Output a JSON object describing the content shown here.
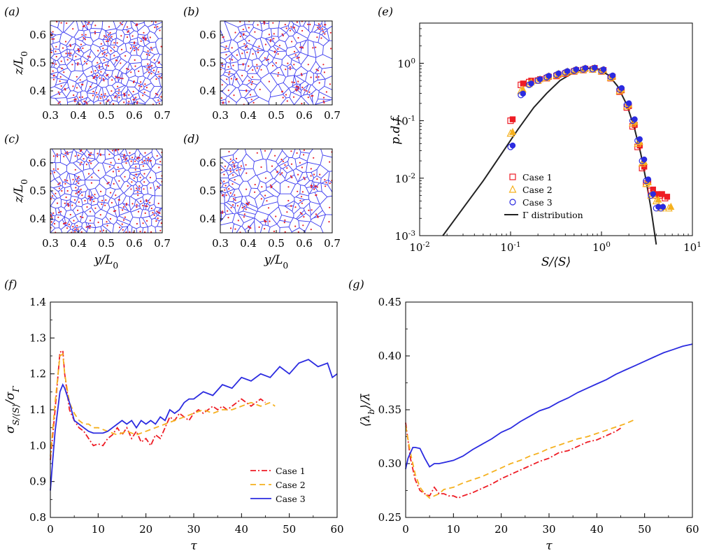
{
  "panels": {
    "a": {
      "label": "(a)"
    },
    "b": {
      "label": "(b)"
    },
    "c": {
      "label": "(c)"
    },
    "d": {
      "label": "(d)"
    },
    "e": {
      "label": "(e)"
    },
    "f": {
      "label": "(f)"
    },
    "g": {
      "label": "(g)"
    }
  },
  "colors": {
    "case1": "#ee1c25",
    "case2": "#f5b11f",
    "case3": "#2b2be0",
    "gamma": "#222222",
    "voronoi": "#3c3cf0",
    "particle": "#e8202a"
  },
  "chart_data": [
    {
      "type": "scatter",
      "panel": "a",
      "xlabel": "",
      "ylabel": "z/L0",
      "xlim": [
        0.3,
        0.7
      ],
      "ylim": [
        0.35,
        0.65
      ],
      "xticks": [
        "0.3",
        "0.4",
        "0.5",
        "0.6",
        "0.7"
      ],
      "yticks": [
        "0.4",
        "0.5",
        "0.6"
      ],
      "overlay": "voronoi tessellation of particle positions",
      "cell_density": 240,
      "seed": 11
    },
    {
      "type": "scatter",
      "panel": "b",
      "xlabel": "",
      "ylabel": "",
      "xlim": [
        0.3,
        0.7
      ],
      "ylim": [
        0.35,
        0.65
      ],
      "xticks": [
        "0.3",
        "0.4",
        "0.5",
        "0.6",
        "0.7"
      ],
      "yticks": [
        "0.4",
        "0.5",
        "0.6"
      ],
      "overlay": "voronoi tessellation of particle positions",
      "cell_density": 170,
      "seed": 23
    },
    {
      "type": "scatter",
      "panel": "c",
      "xlabel": "y/L0",
      "ylabel": "z/L0",
      "xlim": [
        0.3,
        0.7
      ],
      "ylim": [
        0.35,
        0.65
      ],
      "xticks": [
        "0.3",
        "0.4",
        "0.5",
        "0.6",
        "0.7"
      ],
      "yticks": [
        "0.4",
        "0.5",
        "0.6"
      ],
      "overlay": "voronoi tessellation of particle positions",
      "cell_density": 230,
      "seed": 37
    },
    {
      "type": "scatter",
      "panel": "d",
      "xlabel": "y/L0",
      "ylabel": "",
      "xlim": [
        0.3,
        0.7
      ],
      "ylim": [
        0.35,
        0.65
      ],
      "xticks": [
        "0.3",
        "0.4",
        "0.5",
        "0.6",
        "0.7"
      ],
      "yticks": [
        "0.4",
        "0.5",
        "0.6"
      ],
      "overlay": "voronoi tessellation of particle positions",
      "cell_density": 150,
      "seed": 53
    },
    {
      "type": "scatter",
      "panel": "e",
      "xlabel": "S/⟨S⟩",
      "ylabel": "p.d.f.",
      "xscale": "log",
      "yscale": "log",
      "xlim": [
        0.01,
        10
      ],
      "ylim": [
        0.001,
        5
      ],
      "legend": "lower-center",
      "series": [
        {
          "name": "Case 1",
          "marker": "open-square",
          "x": [
            0.1,
            0.13,
            0.16,
            0.2,
            0.25,
            0.32,
            0.4,
            0.5,
            0.63,
            0.8,
            1.0,
            1.26,
            1.58,
            1.9,
            2.2,
            2.5,
            2.8,
            3.1,
            3.5,
            3.9,
            4.4,
            5.0
          ],
          "y": [
            0.1,
            0.42,
            0.47,
            0.5,
            0.55,
            0.6,
            0.66,
            0.72,
            0.76,
            0.78,
            0.72,
            0.55,
            0.32,
            0.17,
            0.08,
            0.035,
            0.015,
            0.008,
            0.006,
            0.005,
            0.005,
            0.0045
          ]
        },
        {
          "name": "Case 2",
          "marker": "open-triangle",
          "x": [
            0.1,
            0.13,
            0.16,
            0.2,
            0.25,
            0.32,
            0.4,
            0.5,
            0.63,
            0.8,
            1.0,
            1.26,
            1.58,
            1.9,
            2.2,
            2.5,
            2.8,
            3.1,
            3.5,
            4.0,
            4.5,
            5.5
          ],
          "y": [
            0.06,
            0.33,
            0.44,
            0.5,
            0.56,
            0.62,
            0.68,
            0.73,
            0.77,
            0.78,
            0.73,
            0.56,
            0.33,
            0.18,
            0.09,
            0.04,
            0.018,
            0.008,
            0.005,
            0.004,
            0.003,
            0.003
          ]
        },
        {
          "name": "Case 3",
          "marker": "open-circle",
          "x": [
            0.1,
            0.13,
            0.16,
            0.2,
            0.25,
            0.32,
            0.4,
            0.5,
            0.63,
            0.8,
            1.0,
            1.26,
            1.58,
            1.9,
            2.2,
            2.5,
            2.8,
            3.1,
            3.5,
            4.0,
            4.5
          ],
          "y": [
            0.035,
            0.28,
            0.42,
            0.5,
            0.57,
            0.63,
            0.69,
            0.74,
            0.78,
            0.79,
            0.74,
            0.58,
            0.35,
            0.19,
            0.1,
            0.045,
            0.02,
            0.009,
            0.005,
            0.003,
            0.003
          ]
        },
        {
          "name": "Γ distribution",
          "line": "solid",
          "x": [
            0.018,
            0.03,
            0.05,
            0.08,
            0.12,
            0.18,
            0.25,
            0.35,
            0.5,
            0.7,
            0.9,
            1.2,
            1.5,
            1.9,
            2.3,
            2.7,
            3.1,
            3.5,
            4.0
          ],
          "y": [
            0.001,
            0.003,
            0.009,
            0.027,
            0.07,
            0.17,
            0.3,
            0.5,
            0.7,
            0.82,
            0.8,
            0.62,
            0.4,
            0.19,
            0.075,
            0.027,
            0.009,
            0.003,
            0.0007
          ]
        }
      ]
    },
    {
      "type": "line",
      "panel": "f",
      "xlabel": "τ",
      "ylabel": "σS/⟨S⟩/σΓ",
      "xlim": [
        0,
        60
      ],
      "ylim": [
        0.8,
        1.4
      ],
      "xticks": [
        0,
        10,
        20,
        30,
        40,
        50,
        60
      ],
      "yticks": [
        0.8,
        0.9,
        1.0,
        1.1,
        1.2,
        1.3,
        1.4
      ],
      "legend": "lower-right",
      "series": [
        {
          "name": "Case 1",
          "dash": "dash-dot",
          "x": [
            0,
            1,
            2,
            2.6,
            3,
            4,
            5,
            6,
            7,
            8,
            9,
            10,
            11,
            12,
            13,
            14,
            15,
            16,
            17,
            18,
            19,
            20,
            21,
            22,
            23,
            24,
            25,
            26,
            27,
            28,
            29,
            30,
            31,
            32,
            33,
            34,
            35,
            36,
            37,
            38,
            39,
            40,
            41,
            42,
            43,
            44,
            45
          ],
          "y": [
            0.96,
            1.1,
            1.26,
            1.265,
            1.2,
            1.1,
            1.07,
            1.05,
            1.04,
            1.02,
            1.0,
            1.005,
            1.0,
            1.02,
            1.03,
            1.05,
            1.03,
            1.05,
            1.02,
            1.04,
            1.01,
            1.02,
            1.0,
            1.03,
            1.02,
            1.05,
            1.08,
            1.07,
            1.09,
            1.08,
            1.07,
            1.09,
            1.1,
            1.09,
            1.1,
            1.11,
            1.1,
            1.11,
            1.1,
            1.11,
            1.12,
            1.13,
            1.12,
            1.11,
            1.12,
            1.13,
            1.12
          ]
        },
        {
          "name": "Case 2",
          "dash": "dashed",
          "x": [
            0,
            1,
            2,
            2.6,
            3,
            4,
            5,
            6,
            7,
            8,
            9,
            10,
            12,
            14,
            16,
            18,
            20,
            22,
            24,
            26,
            28,
            30,
            32,
            34,
            36,
            38,
            40,
            42,
            44,
            46,
            47
          ],
          "y": [
            0.97,
            1.12,
            1.25,
            1.255,
            1.2,
            1.12,
            1.09,
            1.07,
            1.06,
            1.06,
            1.05,
            1.05,
            1.04,
            1.03,
            1.04,
            1.03,
            1.04,
            1.05,
            1.06,
            1.07,
            1.08,
            1.09,
            1.1,
            1.09,
            1.1,
            1.1,
            1.11,
            1.12,
            1.11,
            1.12,
            1.11
          ]
        },
        {
          "name": "Case 3",
          "dash": "solid",
          "x": [
            0,
            0.5,
            1,
            2,
            2.6,
            3,
            4,
            5,
            6,
            7,
            8,
            9,
            10,
            11,
            12,
            13,
            14,
            15,
            16,
            17,
            18,
            19,
            20,
            21,
            22,
            23,
            24,
            25,
            26,
            27,
            28,
            29,
            30,
            32,
            34,
            36,
            38,
            40,
            42,
            44,
            46,
            48,
            50,
            52,
            54,
            56,
            58,
            59,
            60
          ],
          "y": [
            0.875,
            0.96,
            1.04,
            1.15,
            1.17,
            1.16,
            1.12,
            1.07,
            1.06,
            1.05,
            1.04,
            1.035,
            1.035,
            1.035,
            1.04,
            1.05,
            1.06,
            1.07,
            1.06,
            1.07,
            1.05,
            1.07,
            1.06,
            1.07,
            1.06,
            1.08,
            1.07,
            1.1,
            1.09,
            1.1,
            1.12,
            1.13,
            1.13,
            1.15,
            1.14,
            1.17,
            1.16,
            1.19,
            1.18,
            1.2,
            1.19,
            1.22,
            1.2,
            1.23,
            1.24,
            1.22,
            1.23,
            1.19,
            1.2
          ]
        }
      ]
    },
    {
      "type": "line",
      "panel": "g",
      "xlabel": "τ",
      "ylabel": "⟨λb⟩/λ̄",
      "xlim": [
        0,
        60
      ],
      "ylim": [
        0.25,
        0.45
      ],
      "xticks": [
        0,
        10,
        20,
        30,
        40,
        50,
        60
      ],
      "yticks": [
        0.25,
        0.3,
        0.35,
        0.4,
        0.45
      ],
      "series": [
        {
          "name": "Case 1",
          "dash": "dash-dot",
          "x": [
            0,
            1,
            2,
            3,
            4,
            5,
            6,
            7,
            8,
            9,
            10,
            11,
            12,
            14,
            16,
            18,
            20,
            22,
            24,
            26,
            28,
            30,
            32,
            34,
            36,
            38,
            40,
            42,
            44,
            45
          ],
          "y": [
            0.338,
            0.305,
            0.285,
            0.275,
            0.272,
            0.27,
            0.278,
            0.272,
            0.272,
            0.27,
            0.27,
            0.268,
            0.27,
            0.273,
            0.277,
            0.281,
            0.286,
            0.29,
            0.294,
            0.298,
            0.302,
            0.305,
            0.31,
            0.312,
            0.316,
            0.32,
            0.322,
            0.326,
            0.33,
            0.333
          ]
        },
        {
          "name": "Case 2",
          "dash": "dashed",
          "x": [
            0,
            1,
            2,
            3,
            4,
            5,
            6,
            7,
            8,
            10,
            12,
            14,
            16,
            18,
            20,
            22,
            24,
            26,
            28,
            30,
            32,
            34,
            36,
            38,
            40,
            42,
            44,
            46,
            48
          ],
          "y": [
            0.335,
            0.31,
            0.29,
            0.278,
            0.272,
            0.268,
            0.27,
            0.272,
            0.276,
            0.278,
            0.282,
            0.285,
            0.288,
            0.292,
            0.296,
            0.3,
            0.303,
            0.307,
            0.31,
            0.314,
            0.317,
            0.32,
            0.323,
            0.325,
            0.328,
            0.331,
            0.334,
            0.337,
            0.341
          ]
        },
        {
          "name": "Case 3",
          "dash": "solid",
          "x": [
            0,
            0.5,
            1,
            1.5,
            2,
            3,
            4,
            5,
            6,
            7,
            8,
            10,
            12,
            14,
            16,
            18,
            20,
            22,
            24,
            26,
            28,
            30,
            32,
            34,
            36,
            38,
            40,
            42,
            44,
            46,
            48,
            50,
            52,
            54,
            56,
            58,
            60
          ],
          "y": [
            0.295,
            0.305,
            0.31,
            0.315,
            0.315,
            0.314,
            0.305,
            0.297,
            0.3,
            0.3,
            0.301,
            0.303,
            0.307,
            0.313,
            0.318,
            0.323,
            0.329,
            0.333,
            0.339,
            0.344,
            0.349,
            0.352,
            0.357,
            0.361,
            0.366,
            0.37,
            0.374,
            0.378,
            0.383,
            0.387,
            0.391,
            0.395,
            0.399,
            0.403,
            0.406,
            0.409,
            0.411
          ]
        }
      ]
    }
  ]
}
